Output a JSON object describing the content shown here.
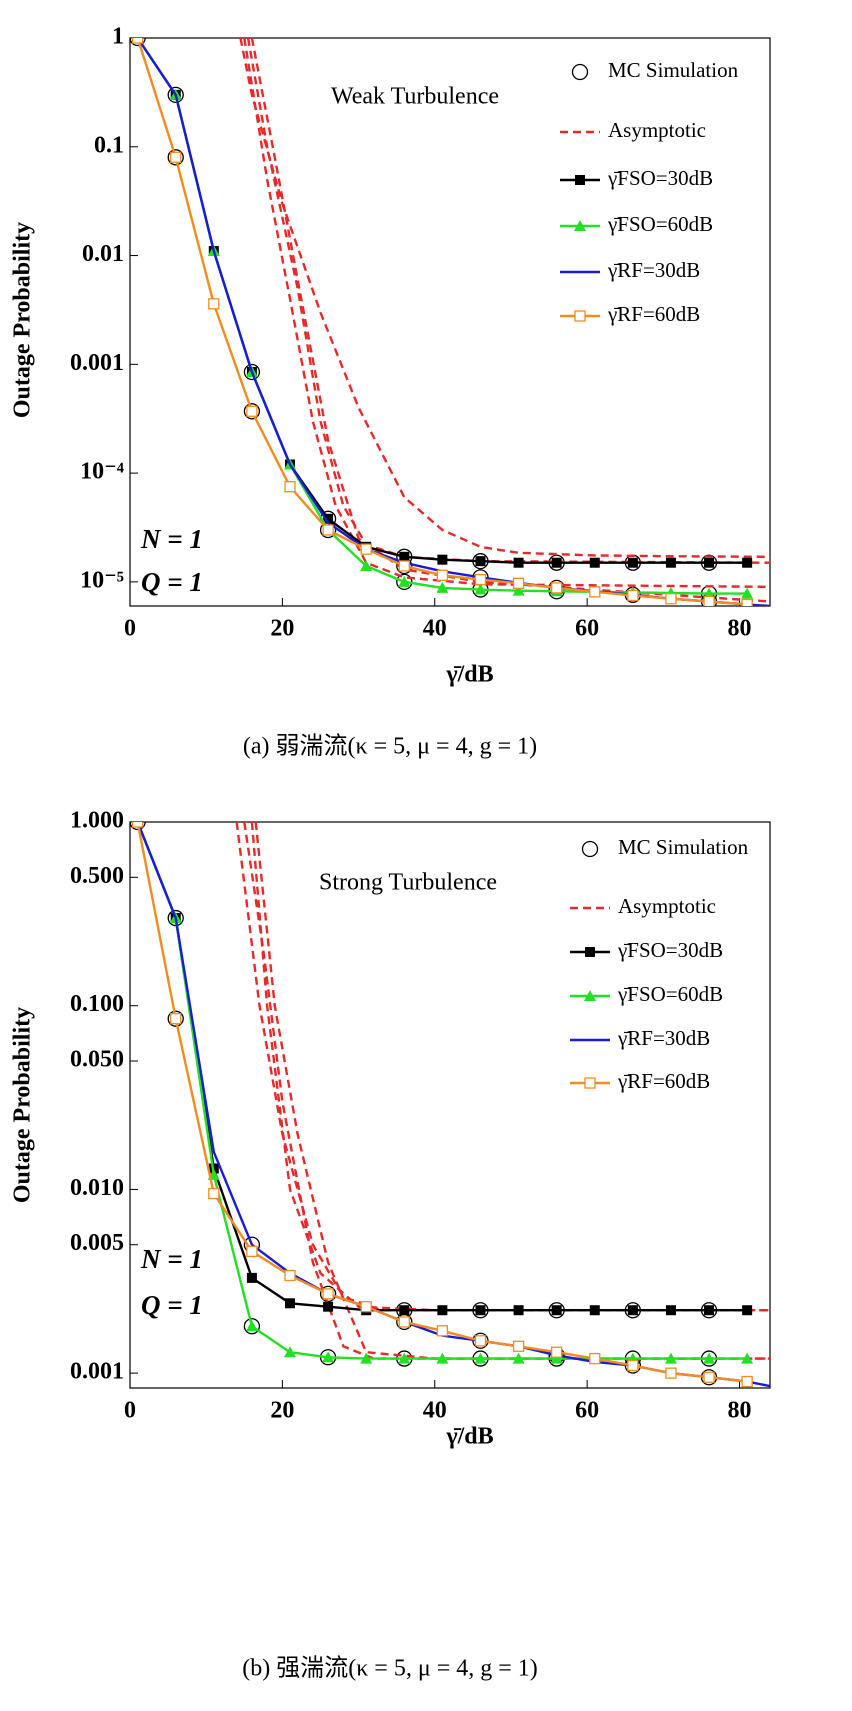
{
  "chart_data": [
    {
      "type": "line",
      "log_y": true,
      "caption": "(a)  弱湍流(κ = 5, μ = 4, g = 1)",
      "annotations": [
        "Weak Turbulence",
        "N = 1",
        "Q = 1"
      ],
      "xlabel": "γ̄/dB",
      "ylabel": "Outage Probability",
      "xlim": [
        0,
        84
      ],
      "ylim": [
        6e-06,
        1
      ],
      "xticks": [
        0,
        20,
        40,
        60,
        80
      ],
      "yticks": [
        1,
        0.1,
        0.01,
        0.001,
        {
          "value": 0.0001,
          "label": "10⁻⁴"
        },
        {
          "value": 1e-05,
          "label": "10⁻⁵"
        }
      ],
      "series": [
        {
          "name": "MC Simulation",
          "color": "#000000",
          "marker": "open-circle",
          "line": false,
          "x": [
            1,
            6,
            6,
            16,
            16,
            26,
            26,
            36,
            36,
            36,
            46,
            46,
            46,
            56,
            56,
            56,
            66,
            66,
            76,
            76,
            76
          ],
          "values": [
            1,
            0.3,
            0.08,
            0.00085,
            0.00037,
            3.8e-05,
            3e-05,
            1.7e-05,
            1.4e-05,
            1e-05,
            1.55e-05,
            1.1e-05,
            8.5e-06,
            1.5e-05,
            8.8e-06,
            8.2e-06,
            1.5e-05,
            7.6e-06,
            1.5e-05,
            7.8e-06,
            6.6e-06
          ]
        },
        {
          "name": "Asymptotic",
          "color": "#e8292a",
          "dashed": true,
          "marker": "none",
          "curves": [
            {
              "x": [
                14.5,
                16,
                20,
                25,
                30,
                36,
                41,
                46,
                51,
                61,
                71,
                84
              ],
              "values": [
                1,
                0.3,
                0.03,
                0.003,
                0.0004,
                6e-05,
                3e-05,
                2.1e-05,
                1.85e-05,
                1.75e-05,
                1.72e-05,
                1.7e-05
              ]
            },
            {
              "x": [
                15.5,
                18,
                22,
                25,
                28,
                31,
                36,
                46,
                84
              ],
              "values": [
                1,
                0.1,
                0.005,
                0.0003,
                5e-05,
                2.2e-05,
                1.7e-05,
                1.55e-05,
                1.5e-05
              ]
            },
            {
              "x": [
                15,
                18,
                21,
                24,
                27,
                31,
                36,
                46,
                84
              ],
              "values": [
                1,
                0.05,
                0.004,
                0.0003,
                5e-05,
                1.5e-05,
                1.1e-05,
                9.5e-06,
                9e-06
              ]
            },
            {
              "x": [
                16,
                19,
                22,
                26,
                30,
                36,
                46,
                66,
                84
              ],
              "values": [
                1,
                0.08,
                0.006,
                0.0002,
                2.5e-05,
                1.3e-05,
                1e-05,
                8e-06,
                6.6e-06
              ]
            }
          ]
        },
        {
          "name": "γ̄FSO=30dB",
          "color": "#000000",
          "marker": "filled-square",
          "x": [
            1,
            6,
            11,
            16,
            21,
            26,
            31,
            36,
            41,
            46,
            51,
            56,
            61,
            66,
            71,
            76,
            81
          ],
          "values": [
            1,
            0.3,
            0.011,
            0.00085,
            0.00012,
            3.8e-05,
            2.1e-05,
            1.7e-05,
            1.6e-05,
            1.55e-05,
            1.5e-05,
            1.5e-05,
            1.5e-05,
            1.5e-05,
            1.5e-05,
            1.5e-05,
            1.5e-05
          ]
        },
        {
          "name": "γ̄FSO=60dB",
          "color": "#22e022",
          "marker": "filled-triangle",
          "x": [
            1,
            6,
            11,
            16,
            21,
            26,
            31,
            36,
            41,
            46,
            51,
            56,
            61,
            66,
            71,
            76,
            81
          ],
          "values": [
            1,
            0.3,
            0.011,
            0.00085,
            0.00012,
            3e-05,
            1.4e-05,
            1e-05,
            8.8e-06,
            8.5e-06,
            8.3e-06,
            8.2e-06,
            8.1e-06,
            8e-06,
            7.9e-06,
            7.8e-06,
            7.8e-06
          ]
        },
        {
          "name": "γ̄RF=30dB",
          "color": "#1a1adc",
          "marker": "none",
          "x": [
            1,
            6,
            11,
            16,
            21,
            26,
            31,
            36,
            41,
            46,
            51,
            56,
            61,
            66,
            71,
            76,
            81,
            84
          ],
          "values": [
            1,
            0.3,
            0.011,
            0.00085,
            0.00012,
            3.5e-05,
            2e-05,
            1.5e-05,
            1.25e-05,
            1.1e-05,
            9.8e-06,
            8.8e-06,
            8.2e-06,
            7.6e-06,
            7e-06,
            6.6e-06,
            6.2e-06,
            6e-06
          ]
        },
        {
          "name": "γ̄RF=60dB",
          "color": "#f28c1e",
          "marker": "open-square",
          "x": [
            1,
            6,
            11,
            16,
            21,
            26,
            31,
            36,
            41,
            46,
            51,
            56,
            61,
            66,
            71,
            76,
            81
          ],
          "values": [
            1,
            0.08,
            0.0036,
            0.00037,
            7.5e-05,
            3e-05,
            2e-05,
            1.4e-05,
            1.15e-05,
            1.05e-05,
            9.7e-06,
            8.8e-06,
            8.1e-06,
            7.5e-06,
            7e-06,
            6.6e-06,
            6.2e-06
          ]
        }
      ]
    },
    {
      "type": "line",
      "log_y": true,
      "caption": "(b)  强湍流(κ = 5, μ = 4, g = 1)",
      "annotations": [
        "Strong Turbulence",
        "N = 1",
        "Q = 1"
      ],
      "xlabel": "γ̄/dB",
      "ylabel": "Outage Probability",
      "xlim": [
        0,
        84
      ],
      "ylim": [
        0.00083,
        1
      ],
      "xticks": [
        0,
        20,
        40,
        60,
        80
      ],
      "yticks": [
        {
          "value": 1,
          "label": "1.000"
        },
        {
          "value": 0.5,
          "label": "0.500"
        },
        {
          "value": 0.1,
          "label": "0.100"
        },
        {
          "value": 0.05,
          "label": "0.050"
        },
        {
          "value": 0.01,
          "label": "0.010"
        },
        {
          "value": 0.005,
          "label": "0.005"
        },
        {
          "value": 0.001,
          "label": "0.001"
        }
      ],
      "series": [
        {
          "name": "MC Simulation",
          "color": "#000000",
          "marker": "open-circle",
          "line": false,
          "x": [
            1,
            6,
            6,
            16,
            16,
            26,
            26,
            36,
            36,
            36,
            46,
            46,
            46,
            56,
            56,
            56,
            66,
            66,
            66,
            76,
            76,
            76
          ],
          "values": [
            1,
            0.3,
            0.085,
            0.005,
            0.0018,
            0.0027,
            0.00122,
            0.0022,
            0.0019,
            0.0012,
            0.0022,
            0.0015,
            0.0012,
            0.0022,
            0.00125,
            0.0012,
            0.0022,
            0.0012,
            0.0011,
            0.0022,
            0.0012,
            0.00095
          ]
        },
        {
          "name": "Asymptotic",
          "color": "#e8292a",
          "dashed": true,
          "marker": "none",
          "curves": [
            {
              "x": [
                14,
                17,
                20,
                24,
                28,
                33,
                84
              ],
              "values": [
                1,
                0.1,
                0.02,
                0.005,
                0.0026,
                0.0022,
                0.0022
              ]
            },
            {
              "x": [
                15,
                17.5,
                20,
                24,
                28,
                32,
                84
              ],
              "values": [
                1,
                0.2,
                0.03,
                0.004,
                0.0014,
                0.0012,
                0.0012
              ]
            },
            {
              "x": [
                16,
                18,
                21,
                25,
                30,
                40,
                84
              ],
              "values": [
                1,
                0.1,
                0.01,
                0.0035,
                0.0023,
                0.0022,
                0.0022
              ]
            },
            {
              "x": [
                16.5,
                19,
                22,
                26,
                31,
                40,
                84
              ],
              "values": [
                1,
                0.1,
                0.02,
                0.004,
                0.0013,
                0.0012,
                0.0012
              ]
            }
          ]
        },
        {
          "name": "γ̄FSO=30dB",
          "color": "#000000",
          "marker": "filled-square",
          "x": [
            1,
            6,
            11,
            16,
            21,
            26,
            31,
            36,
            41,
            46,
            51,
            56,
            61,
            66,
            71,
            76,
            81
          ],
          "values": [
            1,
            0.3,
            0.013,
            0.0033,
            0.0024,
            0.0023,
            0.0022,
            0.0022,
            0.0022,
            0.0022,
            0.0022,
            0.0022,
            0.0022,
            0.0022,
            0.0022,
            0.0022,
            0.0022
          ]
        },
        {
          "name": "γ̄FSO=60dB",
          "color": "#22e022",
          "marker": "filled-triangle",
          "x": [
            1,
            6,
            11,
            16,
            21,
            26,
            31,
            36,
            41,
            46,
            51,
            56,
            61,
            66,
            71,
            76,
            81
          ],
          "values": [
            1,
            0.3,
            0.012,
            0.0018,
            0.0013,
            0.00122,
            0.0012,
            0.0012,
            0.0012,
            0.0012,
            0.0012,
            0.0012,
            0.0012,
            0.0012,
            0.0012,
            0.0012,
            0.0012
          ]
        },
        {
          "name": "γ̄RF=30dB",
          "color": "#1a1adc",
          "marker": "none",
          "x": [
            1,
            6,
            11,
            16,
            21,
            26,
            31,
            36,
            41,
            46,
            51,
            56,
            61,
            66,
            71,
            76,
            81,
            84
          ],
          "values": [
            1,
            0.3,
            0.016,
            0.005,
            0.0035,
            0.0027,
            0.0023,
            0.0019,
            0.0016,
            0.0015,
            0.0014,
            0.00125,
            0.00115,
            0.0011,
            0.001,
            0.00095,
            0.0009,
            0.00085
          ]
        },
        {
          "name": "γ̄RF=60dB",
          "color": "#f28c1e",
          "marker": "open-square",
          "x": [
            1,
            6,
            11,
            16,
            21,
            26,
            31,
            36,
            41,
            46,
            51,
            56,
            61,
            66,
            71,
            76,
            81
          ],
          "values": [
            1,
            0.085,
            0.0095,
            0.0046,
            0.0034,
            0.0027,
            0.0023,
            0.0019,
            0.0017,
            0.0015,
            0.0014,
            0.0013,
            0.0012,
            0.0011,
            0.001,
            0.00095,
            0.0009
          ]
        }
      ]
    }
  ]
}
